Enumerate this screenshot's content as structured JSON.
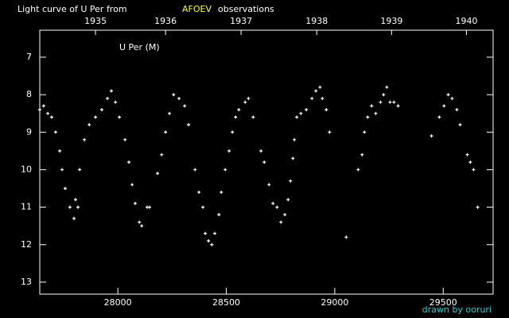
{
  "chart_data": {
    "type": "scatter",
    "title": "Light curve of U Per from",
    "title_source": "AFOEV",
    "title_source_color": "#ffff33",
    "title_suffix": "observations",
    "credit": "drawn by ooruri",
    "credit_color": "#33cccc",
    "background": "#000000",
    "axis_color": "#ffffff",
    "xlim": [
      27640,
      29730
    ],
    "xticks": [
      28000,
      28500,
      29000,
      29500
    ],
    "x2lim": [
      27640,
      29730
    ],
    "x2ticks": [
      {
        "value": 27897,
        "label": "1935"
      },
      {
        "value": 28220,
        "label": "1936"
      },
      {
        "value": 28568,
        "label": "1937"
      },
      {
        "value": 28917,
        "label": "1938"
      },
      {
        "value": 29262,
        "label": "1939"
      },
      {
        "value": 29607,
        "label": "1940"
      }
    ],
    "ylim": [
      6.28,
      13.32
    ],
    "y_inverted": true,
    "yticks": [
      7,
      8,
      9,
      10,
      11,
      12,
      13
    ],
    "x": [
      27640,
      27658,
      27677,
      27695,
      27713,
      27732,
      27743,
      27757,
      27779,
      27798,
      27805,
      27816,
      27824,
      27846,
      27868,
      27897,
      27926,
      27952,
      27970,
      27989,
      28007,
      28033,
      28051,
      28066,
      28080,
      28099,
      28110,
      28135,
      28146,
      28183,
      28202,
      28220,
      28238,
      28257,
      28282,
      28308,
      28326,
      28356,
      28374,
      28392,
      28403,
      28418,
      28433,
      28447,
      28466,
      28477,
      28495,
      28513,
      28528,
      28543,
      28558,
      28587,
      28602,
      28624,
      28660,
      28675,
      28697,
      28715,
      28734,
      28752,
      28770,
      28785,
      28796,
      28807,
      28814,
      28825,
      28844,
      28869,
      28895,
      28913,
      28932,
      28943,
      28961,
      28976,
      29053,
      29108,
      29126,
      29137,
      29152,
      29170,
      29189,
      29211,
      29225,
      29240,
      29255,
      29273,
      29292,
      29446,
      29482,
      29504,
      29523,
      29541,
      29563,
      29578,
      29611,
      29625,
      29640,
      29659
    ],
    "series": [
      {
        "name": "U Per (M)",
        "color": "#ffffff",
        "values": [
          8.4,
          8.3,
          8.5,
          8.6,
          9.0,
          9.5,
          10.0,
          10.5,
          11.0,
          11.3,
          10.8,
          11.0,
          10.0,
          9.2,
          8.8,
          8.6,
          8.4,
          8.1,
          7.9,
          8.2,
          8.6,
          9.2,
          9.8,
          10.4,
          10.9,
          11.4,
          11.5,
          11.0,
          11.0,
          10.1,
          9.6,
          9.0,
          8.5,
          8.0,
          8.1,
          8.3,
          8.8,
          10.0,
          10.6,
          11.0,
          11.7,
          11.9,
          12.0,
          11.7,
          11.2,
          10.6,
          10.0,
          9.5,
          9.0,
          8.6,
          8.4,
          8.2,
          8.1,
          8.6,
          9.5,
          9.8,
          10.4,
          10.9,
          11.0,
          11.4,
          11.2,
          10.8,
          10.3,
          9.7,
          9.2,
          8.6,
          8.5,
          8.4,
          8.1,
          7.9,
          7.8,
          8.1,
          8.4,
          9.0,
          11.8,
          10.0,
          9.6,
          9.0,
          8.6,
          8.3,
          8.5,
          8.2,
          8.0,
          7.8,
          8.2,
          8.2,
          8.3,
          9.1,
          8.6,
          8.3,
          8.0,
          8.1,
          8.4,
          8.8,
          9.6,
          9.8,
          10.0,
          11.0
        ]
      }
    ]
  }
}
